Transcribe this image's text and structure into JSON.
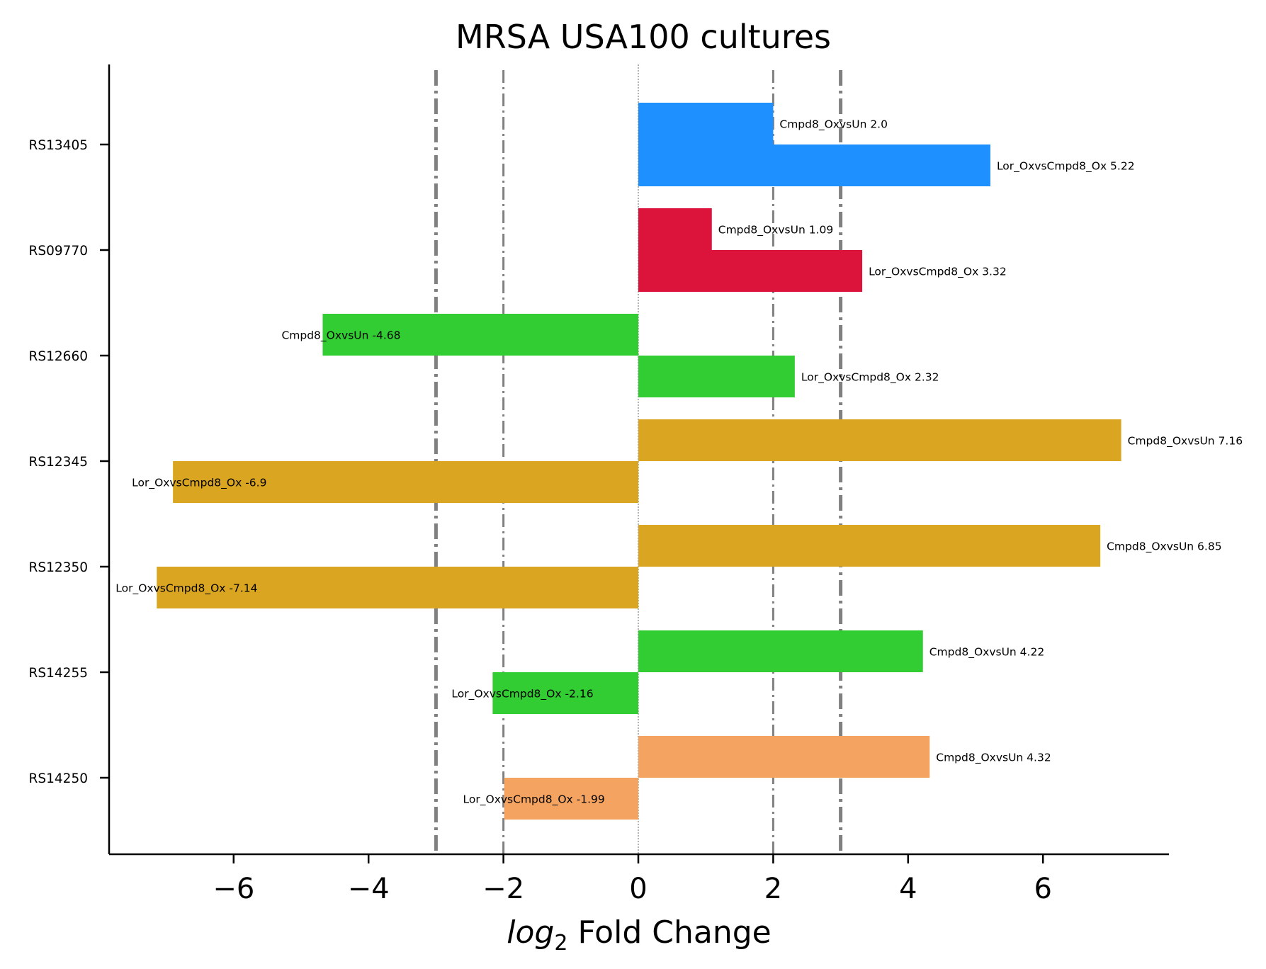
{
  "chart_data": {
    "type": "bar",
    "orientation": "horizontal",
    "title": "MRSA USA100 cultures",
    "xlabel_italic": "log",
    "xlabel_sub": "2",
    "xlabel_rest": " Fold Change",
    "ylabel": "",
    "xlim": [
      -7.8,
      7.8
    ],
    "x_ticks": [
      -6,
      -4,
      -2,
      0,
      2,
      4,
      6
    ],
    "x_tick_labels": [
      "−6",
      "−4",
      "−2",
      "0",
      "2",
      "4",
      "6"
    ],
    "categories": [
      "RS13405",
      "RS09770",
      "RS12660",
      "RS12345",
      "RS12350",
      "RS14255",
      "RS14250"
    ],
    "reference_lines": [
      {
        "x": -3,
        "style": "dash-dot",
        "weight": "thick"
      },
      {
        "x": -2,
        "style": "dash-dot",
        "weight": "thin"
      },
      {
        "x": 0,
        "style": "dotted",
        "weight": "hairline"
      },
      {
        "x": 2,
        "style": "dash-dot",
        "weight": "thin"
      },
      {
        "x": 3,
        "style": "dash-dot",
        "weight": "thick"
      }
    ],
    "groups": [
      {
        "gene": "RS13405",
        "color": "#1E90FF",
        "bars": [
          {
            "series": "Cmpd8_OxvsUn",
            "value": 2.0,
            "label": "Cmpd8_OxvsUn 2.0"
          },
          {
            "series": "Lor_OxvsCmpd8_Ox",
            "value": 5.22,
            "label": "Lor_OxvsCmpd8_Ox 5.22"
          }
        ]
      },
      {
        "gene": "RS09770",
        "color": "#DC143C",
        "bars": [
          {
            "series": "Cmpd8_OxvsUn",
            "value": 1.09,
            "label": "Cmpd8_OxvsUn 1.09"
          },
          {
            "series": "Lor_OxvsCmpd8_Ox",
            "value": 3.32,
            "label": "Lor_OxvsCmpd8_Ox 3.32"
          }
        ]
      },
      {
        "gene": "RS12660",
        "color": "#32CD32",
        "bars": [
          {
            "series": "Cmpd8_OxvsUn",
            "value": -4.68,
            "label": "Cmpd8_OxvsUn -4.68"
          },
          {
            "series": "Lor_OxvsCmpd8_Ox",
            "value": 2.32,
            "label": "Lor_OxvsCmpd8_Ox 2.32"
          }
        ]
      },
      {
        "gene": "RS12345",
        "color": "#DAA520",
        "bars": [
          {
            "series": "Cmpd8_OxvsUn",
            "value": 7.16,
            "label": "Cmpd8_OxvsUn 7.16"
          },
          {
            "series": "Lor_OxvsCmpd8_Ox",
            "value": -6.9,
            "label": "Lor_OxvsCmpd8_Ox -6.9"
          }
        ]
      },
      {
        "gene": "RS12350",
        "color": "#DAA520",
        "bars": [
          {
            "series": "Cmpd8_OxvsUn",
            "value": 6.85,
            "label": "Cmpd8_OxvsUn 6.85"
          },
          {
            "series": "Lor_OxvsCmpd8_Ox",
            "value": -7.14,
            "label": "Lor_OxvsCmpd8_Ox -7.14"
          }
        ]
      },
      {
        "gene": "RS14255",
        "color": "#32CD32",
        "bars": [
          {
            "series": "Cmpd8_OxvsUn",
            "value": 4.22,
            "label": "Cmpd8_OxvsUn 4.22"
          },
          {
            "series": "Lor_OxvsCmpd8_Ox",
            "value": -2.16,
            "label": "Lor_OxvsCmpd8_Ox -2.16"
          }
        ]
      },
      {
        "gene": "RS14250",
        "color": "#F4A460",
        "bars": [
          {
            "series": "Cmpd8_OxvsUn",
            "value": 4.32,
            "label": "Cmpd8_OxvsUn 4.32"
          },
          {
            "series": "Lor_OxvsCmpd8_Ox",
            "value": -1.99,
            "label": "Lor_OxvsCmpd8_Ox -1.99"
          }
        ]
      }
    ],
    "grid": false,
    "legend": "none"
  }
}
